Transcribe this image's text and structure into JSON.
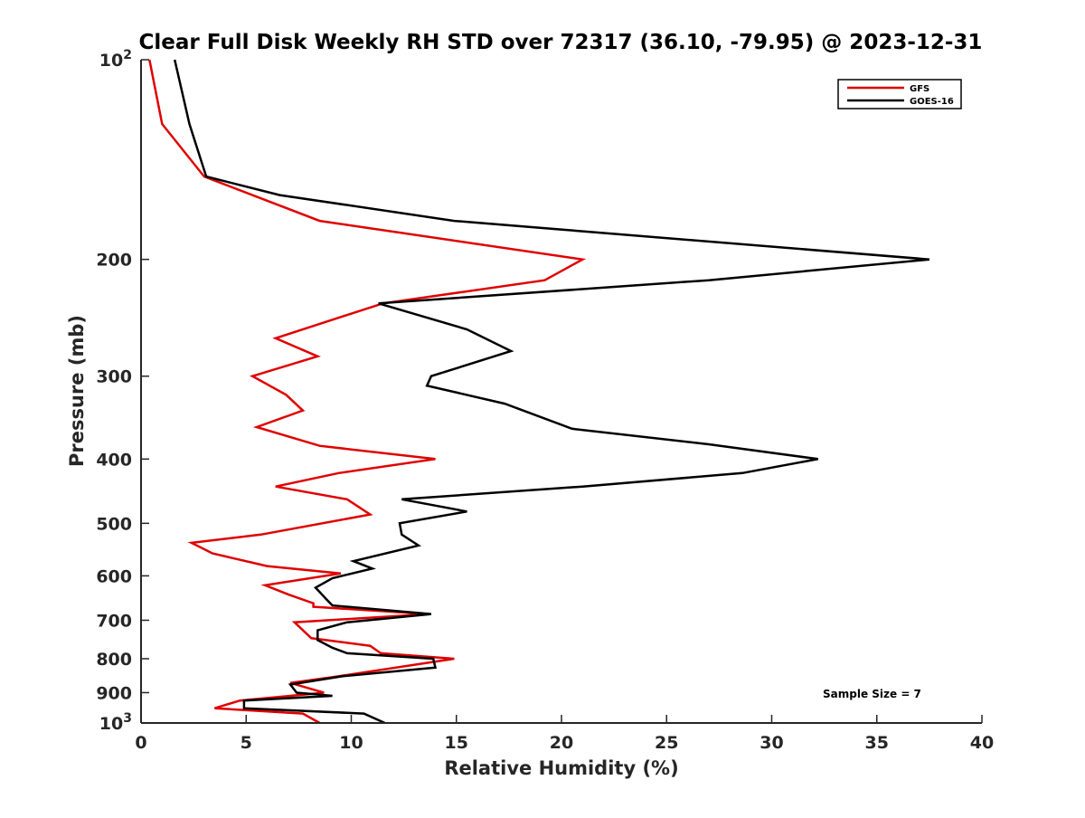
{
  "chart_data": {
    "type": "line",
    "title": "Clear Full Disk Weekly RH STD over 72317 (36.10, -79.95) @ 2023-12-31",
    "xlabel": "Relative Humidity (%)",
    "ylabel": "Pressure (mb)",
    "xlim": [
      0,
      40
    ],
    "ylim": [
      100,
      1000
    ],
    "y_scale": "log",
    "y_reversed": true,
    "grid": false,
    "legend_placement": "top-right",
    "x_ticks": [
      0,
      5,
      10,
      15,
      20,
      25,
      30,
      35,
      40
    ],
    "y_ticks": [
      {
        "value": 100,
        "base": "10",
        "exp": "2"
      },
      {
        "value": 200,
        "label": "200"
      },
      {
        "value": 300,
        "label": "300"
      },
      {
        "value": 400,
        "label": "400"
      },
      {
        "value": 500,
        "label": "500"
      },
      {
        "value": 600,
        "label": "600"
      },
      {
        "value": 700,
        "label": "700"
      },
      {
        "value": 800,
        "label": "800"
      },
      {
        "value": 900,
        "label": "900"
      },
      {
        "value": 1000,
        "base": "10",
        "exp": "3"
      }
    ],
    "annotation": "Sample Size = 7",
    "series": [
      {
        "name": "GFS",
        "color": "#e00000",
        "points": [
          [
            0.4,
            100
          ],
          [
            1.0,
            125
          ],
          [
            3.0,
            150
          ],
          [
            8.5,
            175
          ],
          [
            21.0,
            200
          ],
          [
            19.2,
            215
          ],
          [
            11.5,
            233
          ],
          [
            6.4,
            263
          ],
          [
            8.4,
            280
          ],
          [
            5.3,
            300
          ],
          [
            6.9,
            320
          ],
          [
            7.7,
            338
          ],
          [
            5.5,
            358
          ],
          [
            8.5,
            382
          ],
          [
            14.0,
            400
          ],
          [
            9.4,
            420
          ],
          [
            6.4,
            440
          ],
          [
            9.8,
            460
          ],
          [
            10.9,
            485
          ],
          [
            5.7,
            520
          ],
          [
            2.4,
            535
          ],
          [
            3.4,
            555
          ],
          [
            6.0,
            580
          ],
          [
            9.5,
            595
          ],
          [
            5.9,
            620
          ],
          [
            7.0,
            640
          ],
          [
            8.2,
            660
          ],
          [
            8.2,
            668
          ],
          [
            13.7,
            685
          ],
          [
            7.3,
            705
          ],
          [
            8.1,
            745
          ],
          [
            10.9,
            765
          ],
          [
            11.4,
            785
          ],
          [
            14.9,
            800
          ],
          [
            9.4,
            850
          ],
          [
            7.1,
            870
          ],
          [
            8.7,
            900
          ],
          [
            4.7,
            925
          ],
          [
            3.5,
            950
          ],
          [
            7.7,
            968
          ],
          [
            8.5,
            1000
          ]
        ]
      },
      {
        "name": "GOES-16",
        "color": "#000000",
        "points": [
          [
            1.6,
            100
          ],
          [
            2.3,
            125
          ],
          [
            3.1,
            150
          ],
          [
            6.6,
            160
          ],
          [
            14.9,
            175
          ],
          [
            37.5,
            200
          ],
          [
            27.0,
            215
          ],
          [
            11.3,
            233
          ],
          [
            15.5,
            255
          ],
          [
            17.6,
            275
          ],
          [
            13.8,
            300
          ],
          [
            13.6,
            310
          ],
          [
            17.3,
            330
          ],
          [
            20.5,
            360
          ],
          [
            27.0,
            380
          ],
          [
            32.2,
            400
          ],
          [
            28.6,
            420
          ],
          [
            21.0,
            440
          ],
          [
            12.4,
            460
          ],
          [
            15.5,
            480
          ],
          [
            12.3,
            500
          ],
          [
            12.4,
            520
          ],
          [
            13.2,
            540
          ],
          [
            10.1,
            570
          ],
          [
            11.0,
            585
          ],
          [
            9.1,
            605
          ],
          [
            8.3,
            625
          ],
          [
            8.8,
            650
          ],
          [
            9.1,
            665
          ],
          [
            13.8,
            685
          ],
          [
            9.8,
            705
          ],
          [
            8.4,
            725
          ],
          [
            8.4,
            750
          ],
          [
            9.1,
            770
          ],
          [
            9.8,
            785
          ],
          [
            13.9,
            800
          ],
          [
            14.0,
            825
          ],
          [
            9.6,
            850
          ],
          [
            7.1,
            875
          ],
          [
            7.4,
            900
          ],
          [
            9.1,
            910
          ],
          [
            4.9,
            925
          ],
          [
            4.9,
            950
          ],
          [
            10.6,
            968
          ],
          [
            11.6,
            1000
          ]
        ]
      }
    ]
  }
}
